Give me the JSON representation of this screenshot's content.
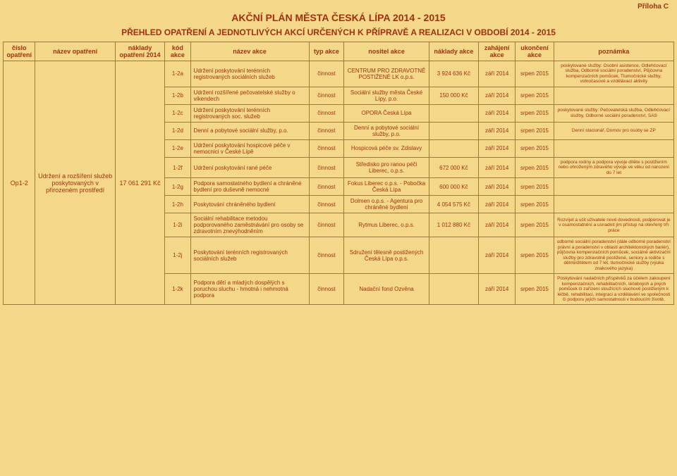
{
  "annex": "Příloha C",
  "title1": "AKČNÍ PLÁN MĚSTA ČESKÁ LÍPA 2014 - 2015",
  "title2": "PŘEHLED OPATŘENÍ A JEDNOTLIVÝCH AKCÍ URČENÝCH K PŘÍPRAVĚ A REALIZACI V OBDOBÍ 2014 - 2015",
  "headers": {
    "cislo": "číslo opatření",
    "nazevop": "název opatření",
    "nakladyop": "náklady opatření 2014",
    "kod": "kód akce",
    "nazevak": "název akce",
    "typ": "typ akce",
    "nositel": "nositel akce",
    "nakladak": "náklady akce",
    "zah": "zahájení akce",
    "uko": "ukončení akce",
    "pozn": "poznámka"
  },
  "group": {
    "cislo": "Op1-2",
    "nazevop": "Udržení a rozšíření služeb poskytovaných v přirozeném prostředí",
    "nakladyop": "17 061 291 Kč"
  },
  "rows": [
    {
      "kod": "1-2a",
      "nazevak": "Udržení poskytování terénních registrovaných sociálních služeb",
      "typ": "činnost",
      "nositel": "CENTRUM PRO ZDRAVOTNĚ POSTIŽENÉ LK o.p.s.",
      "nakladak": "3 924 636 Kč",
      "zah": "září 2014",
      "uko": "srpen 2015",
      "pozn": "poskytované služby: Osobní asistence, Odlehčovací služba, Odborné sociální poradenství, Půjčovna kompenzačních pomůcek, Tlumočnické služby, volnočasové a vzdělávací aktivity"
    },
    {
      "kod": "1-2b",
      "nazevak": "Udržení rozšířené pečovatelské služby o víkendech",
      "typ": "činnost",
      "nositel": "Sociální služby města České Lípy, p.o.",
      "nakladak": "150 000 Kč",
      "zah": "září 2014",
      "uko": "srpen 2015",
      "pozn": ""
    },
    {
      "kod": "1-2c",
      "nazevak": "Udržení poskytování terénních registrovaných soc. služeb",
      "typ": "činnost",
      "nositel": "OPORA Česká Lípa",
      "nakladak": "",
      "zah": "září 2014",
      "uko": "srpen 2015",
      "pozn": "poskytované služby: Pečovatelská služba, Odlehčovací služby, Odborné sociální poradenství, SAS"
    },
    {
      "kod": "1-2d",
      "nazevak": "Denní a pobytové sociální služby, p.o.",
      "typ": "činnost",
      "nositel": "Denní a pobytové sociální služby, p.o.",
      "nakladak": "",
      "zah": "září 2014",
      "uko": "srpen 2015",
      "pozn": "Denní stacionář, Domov pro osoby se ZP"
    },
    {
      "kod": "1-2e",
      "nazevak": "Udržení poskytování hospicové péče v nemocnici v České Lípě",
      "typ": "činnost",
      "nositel": "Hospicová péče sv. Zdislavy",
      "nakladak": "",
      "zah": "září 2014",
      "uko": "srpen 2015",
      "pozn": ""
    },
    {
      "kod": "1-2f",
      "nazevak": "Udržení poskytování rané péče",
      "typ": "činnost",
      "nositel": "Středisko pro ranou péči Liberec, o.p.s.",
      "nakladak": "672 000 Kč",
      "zah": "září 2014",
      "uko": "srpen 2015",
      "pozn": "podpora rodiny a podpora vývoje dítěte s postižením nebo ohroženým zdravého vývoje ve věku od narození do 7 let"
    },
    {
      "kod": "1-2g",
      "nazevak": "Podpora samostatného bydlení a chráněné bydlení pro duševně nemocné",
      "typ": "činnost",
      "nositel": "Fokus Liberec o.p.s. - Pobočka Česká Lípa",
      "nakladak": "600 000 Kč",
      "zah": "září 2014",
      "uko": "srpen 2015",
      "pozn": ""
    },
    {
      "kod": "1-2h",
      "nazevak": "Poskytování chráněného bydlení",
      "typ": "činnost",
      "nositel": "Dolmen o.p.s. - Agentura pro chráněné bydlení",
      "nakladak": "4 054 575 Kč",
      "zah": "září 2014",
      "uko": "srpen 2015",
      "pozn": ""
    },
    {
      "kod": "1-2i",
      "nazevak": "Sociální rehabilitace metodou podporovaného zaměstnávání pro osoby se zdravotním znevýhodněním",
      "typ": "činnost",
      "nositel": "Rytmus Liberec, o.p.s.",
      "nakladak": "1 012 880 Kč",
      "zah": "září 2014",
      "uko": "srpen 2015",
      "pozn": "Rozvíjet a učit uživatele nové dovednosti, podporovat je v osamostatnění a usnadnit jim přístup na otevřený trh práce"
    },
    {
      "kod": "1-2j",
      "nazevak": "Poskytování terénních registrovaných sociálních služeb",
      "typ": "činnost",
      "nositel": "Sdružení tělesně postižených Česká Lípa o.p.s.",
      "nakladak": "",
      "zah": "září 2014",
      "uko": "srpen 2015",
      "pozn": "odborné sociální poradenství (dále odborné poradenství právní a poradenství v oblasti architektonických bariér), půjčovna kompenzačních pomůcek, sociálně aktivizační služby pro zdravotně postižené, seniory a rodiče s dětmi/dítětem od 7 let, tlumočnické služby (výuka znakového jazyka)"
    },
    {
      "kod": "1-2k",
      "nazevak": "Podpora dětí a mladých dospělých s poruchou sluchu - hmotná i nehmotná podpora",
      "typ": "činnost",
      "nositel": "Nadační fond Ozvěna",
      "nakladak": "",
      "zah": "září 2014",
      "uko": "srpen 2015",
      "pozn": "Poskytování nadačních příspěvků za účelem zakoupení kompenzačních, rehabilitačních, léčebných a jiných pomůcek či zařízení sloužících sluchově postiženým k léčbě, rehabilitaci, integraci a vzdělávání ve společnosti či podporu jejich samostatnosti v budoucím životě."
    }
  ],
  "style": {
    "bg": "#f4d88a",
    "border": "#a0783a",
    "text": "#a0300f"
  }
}
